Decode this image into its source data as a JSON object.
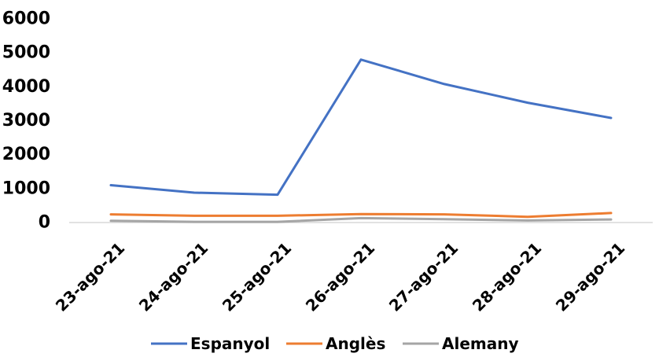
{
  "chart_data": {
    "type": "line",
    "title": "",
    "xlabel": "",
    "ylabel": "",
    "categories": [
      "23-ago-21",
      "24-ago-21",
      "25-ago-21",
      "26-ago-21",
      "27-ago-21",
      "28-ago-21",
      "29-ago-21"
    ],
    "ylim": [
      0,
      6000
    ],
    "yticks": [
      0,
      1000,
      2000,
      3000,
      4000,
      5000,
      6000
    ],
    "grid": false,
    "legend_position": "bottom",
    "series": [
      {
        "name": "Espanyol",
        "color": "#4472C4",
        "values": [
          1100,
          880,
          820,
          4800,
          4080,
          3530,
          3080
        ]
      },
      {
        "name": "Anglès",
        "color": "#ED7D31",
        "values": [
          240,
          200,
          200,
          250,
          240,
          170,
          280
        ]
      },
      {
        "name": "Alemany",
        "color": "#A5A5A5",
        "values": [
          50,
          20,
          20,
          130,
          100,
          60,
          90
        ]
      }
    ]
  }
}
